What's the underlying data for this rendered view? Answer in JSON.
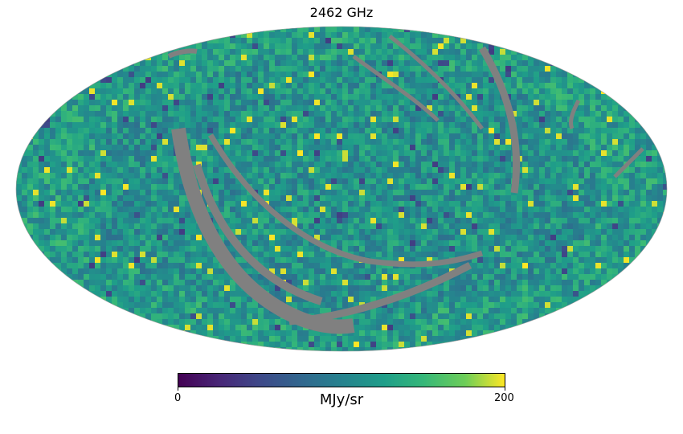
{
  "chart_data": {
    "type": "heatmap",
    "projection": "mollweide",
    "title": "2462 GHz",
    "colormap": "viridis",
    "colorbar": {
      "min": 0,
      "max": 200,
      "ticks": [
        "0",
        "200"
      ],
      "unit": "MJy/sr",
      "orientation": "horizontal",
      "placement": "bottom"
    },
    "bad_value_color": "#808080",
    "background_level": 115,
    "notes_visible": "masked (bad-pixel) stripes shown in gray"
  }
}
